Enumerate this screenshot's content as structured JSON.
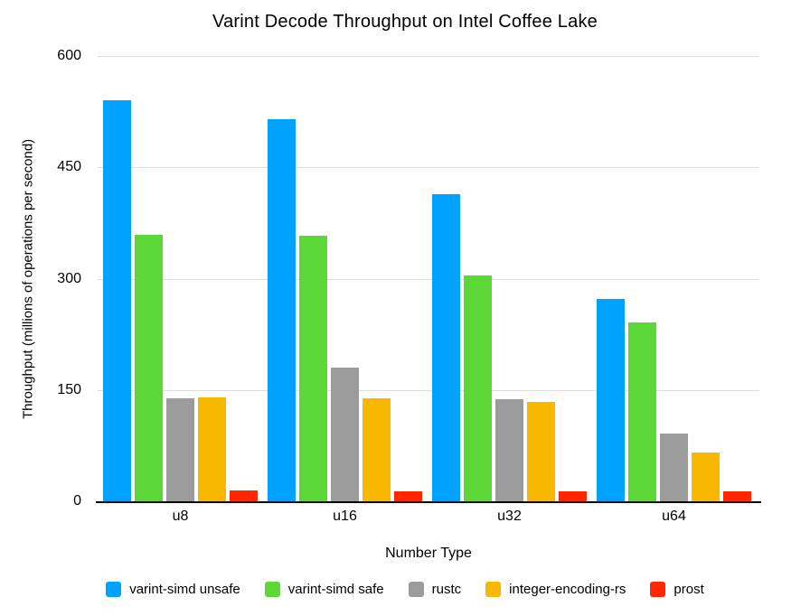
{
  "chart_data": {
    "type": "bar",
    "title": "Varint Decode Throughput on Intel Coffee Lake",
    "xlabel": "Number Type",
    "ylabel": "Throughput (millions of operations per second)",
    "categories": [
      "u8",
      "u16",
      "u32",
      "u64"
    ],
    "series": [
      {
        "name": "varint-simd unsafe",
        "color": "#00A2FF",
        "values": [
          540,
          515,
          414,
          273
        ]
      },
      {
        "name": "varint-simd safe",
        "color": "#5DD738",
        "values": [
          359,
          358,
          304,
          241
        ]
      },
      {
        "name": "rustc",
        "color": "#9B9B9B",
        "values": [
          139,
          180,
          137,
          91
        ]
      },
      {
        "name": "integer-encoding-rs",
        "color": "#F8B800",
        "values": [
          140,
          139,
          134,
          66
        ]
      },
      {
        "name": "prost",
        "color": "#FF2600",
        "values": [
          15,
          14,
          14,
          14
        ]
      }
    ],
    "ylim": [
      0,
      600
    ],
    "yticks": [
      0,
      150,
      300,
      450,
      600
    ],
    "grid": true,
    "grid_color": "#DDDDDD",
    "axis_color": "#000000",
    "legend_position": "bottom"
  }
}
